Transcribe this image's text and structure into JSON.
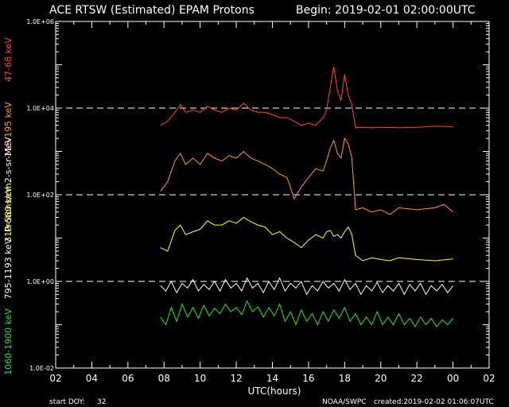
{
  "header": {
    "title": "ACE RTSW (Estimated) EPAM Protons",
    "begin": "Begin: 2019-02-01 02:00:00UTC"
  },
  "footer": {
    "start_doy_label": "start DOY:",
    "start_doy_value": "32",
    "source": "NOAA/SWPC",
    "created": "created:2019-02-02 01:06:07UTC"
  },
  "colors": {
    "background": "#000000",
    "axes": "#ffffff",
    "ch_47_68": "#ff4a2a",
    "ch_115_195": "#ff9a2a",
    "ch_310_580": "#ffff30",
    "ch_795_1193": "#ffffff",
    "ch_1060_1900": "#2fe02f"
  },
  "chart_data": {
    "type": "line",
    "title": "ACE RTSW (Estimated) EPAM Protons",
    "xlabel": "UTC(hours)",
    "ylabel": "Protons/cm2-s-sr-MeV",
    "y_scale": "log",
    "xlim": [
      2,
      26
    ],
    "ylim": [
      0.01,
      1000000
    ],
    "x_tick_labels": [
      "02",
      "04",
      "06",
      "08",
      "10",
      "12",
      "14",
      "16",
      "18",
      "20",
      "22",
      "00",
      "02"
    ],
    "y_tick_labels": [
      "1.0E-02",
      "1.0E+00",
      "1.0E+02",
      "1.0E+04",
      "1.0E+06"
    ],
    "reference_lines": [
      1,
      100,
      10000
    ],
    "series": [
      {
        "name": "47-68 keV",
        "color": "#ff4a2a",
        "x": [
          7.8,
          8.2,
          8.6,
          8.9,
          9.2,
          9.6,
          10.0,
          10.4,
          10.8,
          11.2,
          11.6,
          12.0,
          12.4,
          12.8,
          13.2,
          13.6,
          14.0,
          14.4,
          14.8,
          15.2,
          15.6,
          16.0,
          16.4,
          16.8,
          17.0,
          17.2,
          17.4,
          17.6,
          17.8,
          18.0,
          18.2,
          18.4,
          18.6,
          19.0,
          19.5,
          20.0,
          21.0,
          22.0,
          23.0,
          24.0
        ],
        "values": [
          4000,
          5000,
          8000,
          12000,
          8000,
          9000,
          8000,
          11000,
          9000,
          8000,
          10000,
          9000,
          13000,
          9000,
          8000,
          8000,
          7000,
          6000,
          6000,
          5000,
          4000,
          4500,
          4000,
          6000,
          9000,
          30000,
          90000,
          25000,
          15000,
          60000,
          20000,
          12000,
          3500,
          3600,
          3500,
          3600,
          3500,
          3600,
          3800,
          3700
        ]
      },
      {
        "name": "115-195 keV",
        "color": "#ff9a2a",
        "x": [
          7.8,
          8.2,
          8.6,
          8.9,
          9.2,
          9.6,
          10.0,
          10.4,
          10.8,
          11.2,
          11.6,
          12.0,
          12.4,
          12.8,
          13.2,
          13.6,
          14.0,
          14.4,
          14.8,
          15.0,
          15.2,
          15.6,
          16.0,
          16.4,
          16.8,
          17.0,
          17.2,
          17.4,
          17.6,
          17.8,
          18.0,
          18.2,
          18.4,
          18.6,
          19.0,
          19.5,
          20.0,
          20.5,
          21.0,
          22.0,
          23.0,
          23.5,
          24.0
        ],
        "values": [
          120,
          200,
          600,
          900,
          500,
          700,
          500,
          900,
          700,
          600,
          800,
          700,
          1000,
          700,
          600,
          500,
          400,
          300,
          250,
          150,
          80,
          150,
          250,
          400,
          350,
          600,
          1200,
          1800,
          900,
          700,
          2000,
          1500,
          700,
          45,
          50,
          40,
          45,
          35,
          50,
          45,
          50,
          60,
          40
        ]
      },
      {
        "name": "310-580 keV",
        "color": "#ffff30",
        "x": [
          7.8,
          8.2,
          8.6,
          8.9,
          9.2,
          9.6,
          10.0,
          10.4,
          10.8,
          11.2,
          11.6,
          12.0,
          12.4,
          12.8,
          13.2,
          13.6,
          14.0,
          14.4,
          14.8,
          15.2,
          15.6,
          16.0,
          16.4,
          16.8,
          17.0,
          17.2,
          17.4,
          17.6,
          17.8,
          18.0,
          18.2,
          18.4,
          18.6,
          19.0,
          19.5,
          20.0,
          20.5,
          21.0,
          22.0,
          23.0,
          24.0
        ],
        "values": [
          6,
          5,
          15,
          20,
          12,
          14,
          16,
          25,
          20,
          20,
          25,
          22,
          30,
          24,
          20,
          18,
          12,
          14,
          10,
          8,
          6,
          9,
          12,
          10,
          14,
          15,
          11,
          12,
          10,
          14,
          18,
          12,
          4,
          3,
          3.5,
          3.2,
          3,
          3.5,
          3.2,
          3,
          3.3
        ]
      },
      {
        "name": "795-1193 keV",
        "color": "#ffffff",
        "x": [
          7.8,
          8.1,
          8.4,
          8.7,
          9.0,
          9.3,
          9.6,
          9.9,
          10.2,
          10.5,
          10.8,
          11.1,
          11.4,
          11.7,
          12.0,
          12.3,
          12.6,
          12.9,
          13.2,
          13.5,
          13.8,
          14.1,
          14.4,
          14.7,
          15.0,
          15.3,
          15.6,
          15.9,
          16.2,
          16.5,
          16.8,
          17.1,
          17.4,
          17.7,
          18.0,
          18.3,
          18.6,
          18.9,
          19.2,
          19.5,
          19.8,
          20.1,
          20.4,
          20.7,
          21.0,
          21.3,
          21.6,
          21.9,
          22.2,
          22.5,
          22.8,
          23.1,
          23.4,
          23.7,
          24.0
        ],
        "values": [
          0.8,
          0.6,
          1.0,
          0.55,
          0.9,
          0.7,
          1.1,
          0.6,
          0.85,
          0.65,
          1.0,
          0.6,
          1.1,
          0.7,
          0.9,
          0.6,
          1.2,
          0.7,
          0.9,
          0.55,
          1.0,
          0.65,
          1.2,
          0.6,
          0.9,
          0.7,
          1.0,
          0.5,
          0.8,
          0.6,
          1.0,
          0.7,
          0.9,
          0.6,
          1.1,
          0.65,
          0.9,
          0.5,
          0.8,
          0.6,
          0.95,
          0.55,
          0.8,
          0.6,
          0.9,
          0.5,
          0.85,
          0.6,
          0.9,
          0.5,
          0.8,
          0.6,
          0.85,
          0.55,
          0.8
        ]
      },
      {
        "name": "1060-1900 keV",
        "color": "#2fe02f",
        "x": [
          7.8,
          8.1,
          8.4,
          8.7,
          9.0,
          9.3,
          9.6,
          9.9,
          10.2,
          10.5,
          10.8,
          11.1,
          11.4,
          11.7,
          12.0,
          12.3,
          12.6,
          12.9,
          13.2,
          13.5,
          13.8,
          14.1,
          14.4,
          14.7,
          15.0,
          15.3,
          15.6,
          15.9,
          16.2,
          16.5,
          16.8,
          17.1,
          17.4,
          17.7,
          18.0,
          18.3,
          18.6,
          18.9,
          19.2,
          19.5,
          19.8,
          20.1,
          20.4,
          20.7,
          21.0,
          21.3,
          21.6,
          21.9,
          22.2,
          22.5,
          22.8,
          23.1,
          23.4,
          23.7,
          24.0
        ],
        "values": [
          0.15,
          0.1,
          0.25,
          0.12,
          0.3,
          0.15,
          0.25,
          0.14,
          0.28,
          0.16,
          0.24,
          0.18,
          0.3,
          0.2,
          0.25,
          0.17,
          0.35,
          0.2,
          0.26,
          0.15,
          0.25,
          0.16,
          0.3,
          0.12,
          0.2,
          0.1,
          0.22,
          0.12,
          0.18,
          0.1,
          0.2,
          0.12,
          0.22,
          0.14,
          0.25,
          0.12,
          0.18,
          0.1,
          0.15,
          0.1,
          0.2,
          0.1,
          0.15,
          0.1,
          0.18,
          0.1,
          0.14,
          0.09,
          0.15,
          0.1,
          0.14,
          0.09,
          0.13,
          0.1,
          0.14
        ]
      }
    ]
  }
}
